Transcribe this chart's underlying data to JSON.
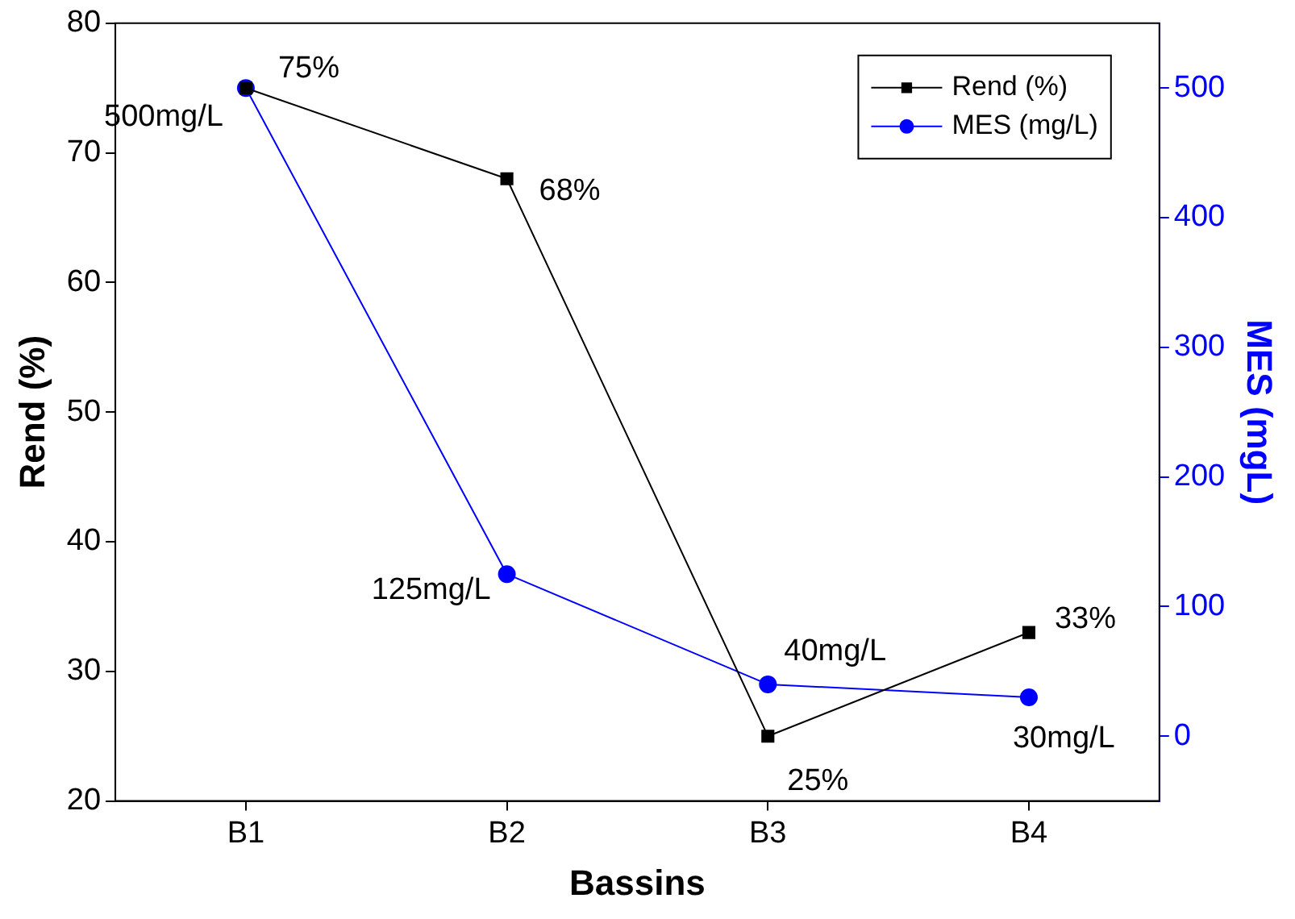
{
  "chart_data": {
    "type": "line",
    "xlabel": "Bassins",
    "ylabel": "Rend (%)",
    "y2label": "MES (mgL)",
    "categories": [
      "B1",
      "B2",
      "B3",
      "B4"
    ],
    "series": [
      {
        "name": "Rend (%)",
        "color": "#000000",
        "marker": "square",
        "values": [
          75,
          68,
          25,
          33
        ],
        "value_labels": [
          "75%",
          "68%",
          "25%",
          "33%"
        ]
      },
      {
        "name": "MES (mg/L)",
        "color": "#0000ff",
        "marker": "circle",
        "axis": "y2",
        "values": [
          500,
          125,
          40,
          30
        ],
        "value_labels": [
          "500mg/L",
          "125mg/L",
          "40mg/L",
          "30mg/L"
        ]
      }
    ],
    "ylim": [
      20,
      80
    ],
    "yticks": [
      20,
      30,
      40,
      50,
      60,
      70,
      80
    ],
    "y2lim": [
      -50,
      550
    ],
    "y2ticks": [
      0,
      100,
      200,
      300,
      400,
      500
    ],
    "grid": false,
    "legend": "top right",
    "line_style": "solid"
  }
}
